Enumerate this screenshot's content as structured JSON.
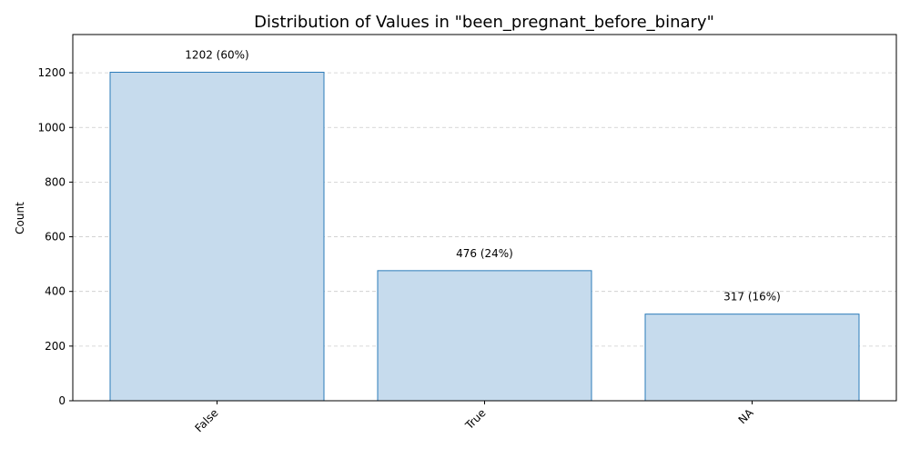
{
  "chart_data": {
    "type": "bar",
    "title": "Distribution of Values in \"been_pregnant_before_binary\"",
    "xlabel": "",
    "ylabel": "Count",
    "categories": [
      "False",
      "True",
      "NA"
    ],
    "values": [
      1202,
      476,
      317
    ],
    "data_labels": [
      "1202 (60%)",
      "476 (24%)",
      "317 (16%)"
    ],
    "ylim": [
      0,
      1340
    ],
    "yticks": [
      0,
      200,
      400,
      600,
      800,
      1000,
      1200
    ],
    "ytick_labels": [
      "0",
      "200",
      "400",
      "600",
      "800",
      "1000",
      "1200"
    ],
    "grid": "y-dashed",
    "legend": "none",
    "colors": {
      "bar_fill": "#c6dbed",
      "bar_edge": "#2b7bb9",
      "grid": "#cccccc",
      "axis": "#000000"
    }
  }
}
